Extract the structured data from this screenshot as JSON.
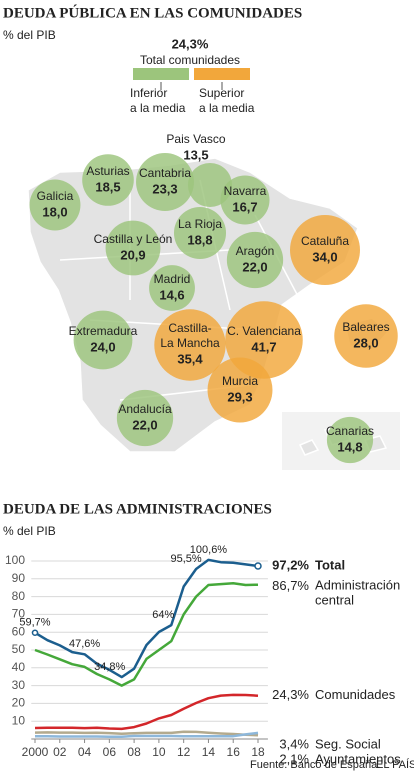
{
  "chart_data": [
    {
      "type": "bubble",
      "title": "DEUDA PÚBLICA EN LAS COMUNIDADES",
      "subtitle": "% del PIB",
      "average": {
        "value": 24.3,
        "label": "24,3%",
        "name": "Total comunidades"
      },
      "legend": {
        "below": "Inferior\na la media",
        "above": "Superior\na la media"
      },
      "colors": {
        "below": "#9cc57c",
        "above": "#f2a73b"
      },
      "categories": [
        "Galicia",
        "Asturias",
        "Cantabria",
        "Pais Vasco",
        "Navarra",
        "La Rioja",
        "Castilla y León",
        "Aragón",
        "Cataluña",
        "Madrid",
        "Extremadura",
        "Castilla-\nLa Mancha",
        "C. Valenciana",
        "Baleares",
        "Murcia",
        "Andalucía",
        "Canarias"
      ],
      "values": [
        18.0,
        18.5,
        23.3,
        13.5,
        16.7,
        18.8,
        20.9,
        22.0,
        34.0,
        14.6,
        24.0,
        35.4,
        41.7,
        28.0,
        29.3,
        22.0,
        14.8
      ],
      "value_labels": [
        "18,0",
        "18,5",
        "23,3",
        "13,5",
        "16,7",
        "18,8",
        "20,9",
        "22,0",
        "34,0",
        "14,6",
        "24,0",
        "35,4",
        "41,7",
        "28,0",
        "29,3",
        "22,0",
        "14,8"
      ]
    },
    {
      "type": "line",
      "title": "DEUDA DE LAS ADMINISTRACIONES",
      "subtitle": "% del PIB",
      "x": [
        2000,
        2001,
        2002,
        2003,
        2004,
        2005,
        2006,
        2007,
        2008,
        2009,
        2010,
        2011,
        2012,
        2013,
        2014,
        2015,
        2016,
        2017,
        2018
      ],
      "xlim": [
        1999.7,
        2018.8
      ],
      "xticks": [
        2000,
        {
          "value": 2002,
          "label": "02"
        },
        {
          "value": 2004,
          "label": "04"
        },
        {
          "value": 2006,
          "label": "06"
        },
        {
          "value": 2008,
          "label": "08"
        },
        {
          "value": 2010,
          "label": "10"
        },
        {
          "value": 2012,
          "label": "12"
        },
        {
          "value": 2014,
          "label": "14"
        },
        {
          "value": 2016,
          "label": "16"
        },
        {
          "value": 2018,
          "label": "18"
        }
      ],
      "ylim": [
        0,
        100
      ],
      "yticks": [
        10,
        20,
        30,
        40,
        50,
        60,
        70,
        80,
        90,
        100
      ],
      "grid": true,
      "series": [
        {
          "name": "Total",
          "color": "#1b5e8e",
          "values": [
            59.7,
            55.5,
            52.6,
            48.8,
            47.6,
            42.3,
            38.9,
            34.8,
            39.5,
            52.8,
            60.1,
            64.0,
            85.7,
            95.5,
            100.6,
            99.3,
            99.0,
            98.1,
            97.2
          ],
          "value_labels": [
            "59,7%",
            null,
            null,
            null,
            "47,6%",
            null,
            null,
            "34,8%",
            null,
            null,
            null,
            "64%",
            null,
            "95,5%",
            "100,6%",
            null,
            null,
            null,
            "97,2%"
          ]
        },
        {
          "name": "Administración\ncentral",
          "color": "#45a83a",
          "values": [
            50.0,
            47.5,
            44.8,
            42.0,
            40.5,
            36.5,
            33.5,
            30.0,
            33.5,
            45.0,
            50.0,
            55.0,
            70.0,
            80.0,
            86.5,
            87.0,
            87.5,
            86.5,
            86.7
          ],
          "value_labels": [
            null,
            null,
            null,
            null,
            null,
            null,
            null,
            null,
            null,
            null,
            null,
            null,
            null,
            null,
            null,
            null,
            null,
            null,
            "86,7%"
          ]
        },
        {
          "name": "Comunidades",
          "color": "#d3262a",
          "values": [
            6.2,
            6.3,
            6.3,
            6.3,
            6.1,
            6.3,
            5.9,
            5.7,
            6.7,
            8.7,
            11.6,
            13.5,
            17.0,
            20.2,
            22.9,
            24.4,
            24.8,
            24.7,
            24.3
          ],
          "value_labels": [
            null,
            null,
            null,
            null,
            null,
            null,
            null,
            null,
            null,
            null,
            null,
            null,
            null,
            null,
            null,
            null,
            null,
            null,
            "24,3%"
          ]
        },
        {
          "name": "Seg. Social",
          "color": "#8db7da",
          "values": [
            1.5,
            1.5,
            1.4,
            1.4,
            1.4,
            1.4,
            1.3,
            1.3,
            1.7,
            1.7,
            1.7,
            1.7,
            1.6,
            1.6,
            1.6,
            1.6,
            1.6,
            2.6,
            3.4
          ],
          "value_labels": [
            null,
            null,
            null,
            null,
            null,
            null,
            null,
            null,
            null,
            null,
            null,
            null,
            null,
            null,
            null,
            null,
            null,
            null,
            "3,4%"
          ]
        },
        {
          "name": "Ayuntamientos",
          "color": "#b3aa8e",
          "values": [
            3.6,
            3.7,
            3.6,
            3.6,
            3.4,
            3.5,
            3.3,
            3.0,
            3.2,
            3.4,
            3.4,
            3.4,
            4.1,
            4.0,
            3.5,
            3.1,
            2.8,
            2.4,
            2.1
          ],
          "value_labels": [
            null,
            null,
            null,
            null,
            null,
            null,
            null,
            null,
            null,
            null,
            null,
            null,
            null,
            null,
            null,
            null,
            null,
            null,
            "2,1%"
          ]
        }
      ]
    }
  ],
  "source": "Fuente: Banco de España.",
  "brand": "EL PAÍS"
}
